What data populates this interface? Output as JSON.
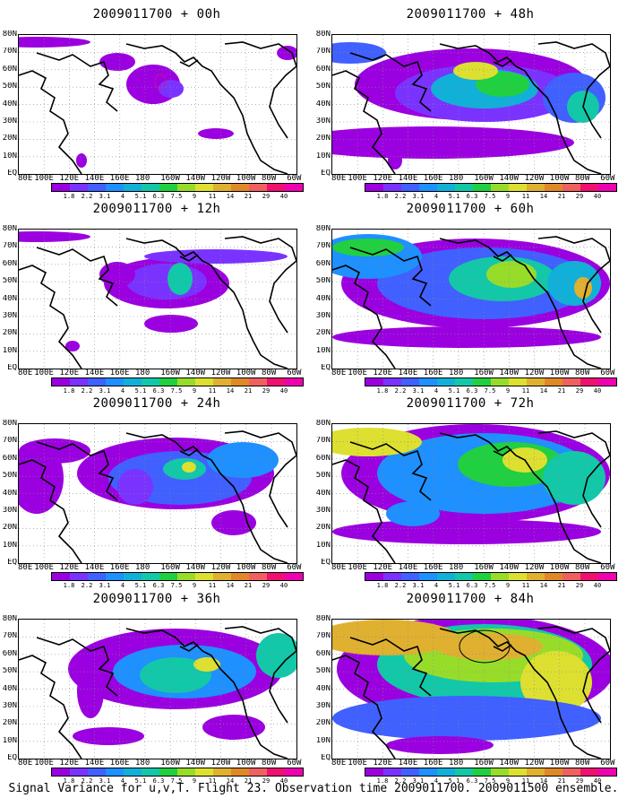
{
  "panels": [
    {
      "title": "2009011700 + 00h"
    },
    {
      "title": "2009011700 + 48h"
    },
    {
      "title": "2009011700 + 12h"
    },
    {
      "title": "2009011700 + 60h"
    },
    {
      "title": "2009011700 + 24h"
    },
    {
      "title": "2009011700 + 72h"
    },
    {
      "title": "2009011700 + 36h"
    },
    {
      "title": "2009011700 + 84h"
    }
  ],
  "lat_labels": [
    "80N",
    "70N",
    "60N",
    "50N",
    "40N",
    "30N",
    "20N",
    "10N",
    "EQ"
  ],
  "lon_labels": [
    "80E",
    "100E",
    "120E",
    "140E",
    "160E",
    "180",
    "160W",
    "140W",
    "120W",
    "100W",
    "80W",
    "60W"
  ],
  "colorbar": {
    "ticks": [
      "1.8",
      "2.2",
      "3.1",
      "4",
      "5.1",
      "6.3",
      "7.5",
      "9",
      "11",
      "14",
      "21",
      "29",
      "40"
    ],
    "colors": [
      "#9b00e0",
      "#7a33ff",
      "#4060ff",
      "#1e90ff",
      "#11b0d8",
      "#12c8a8",
      "#20d040",
      "#98dc2a",
      "#dde030",
      "#e0b030",
      "#e08828",
      "#f06060",
      "#f01070",
      "#f000b0"
    ]
  },
  "caption": "Signal Variance for u,v,T. Flight 23. Observation time 2009011700. 2009011500 ensemble."
}
